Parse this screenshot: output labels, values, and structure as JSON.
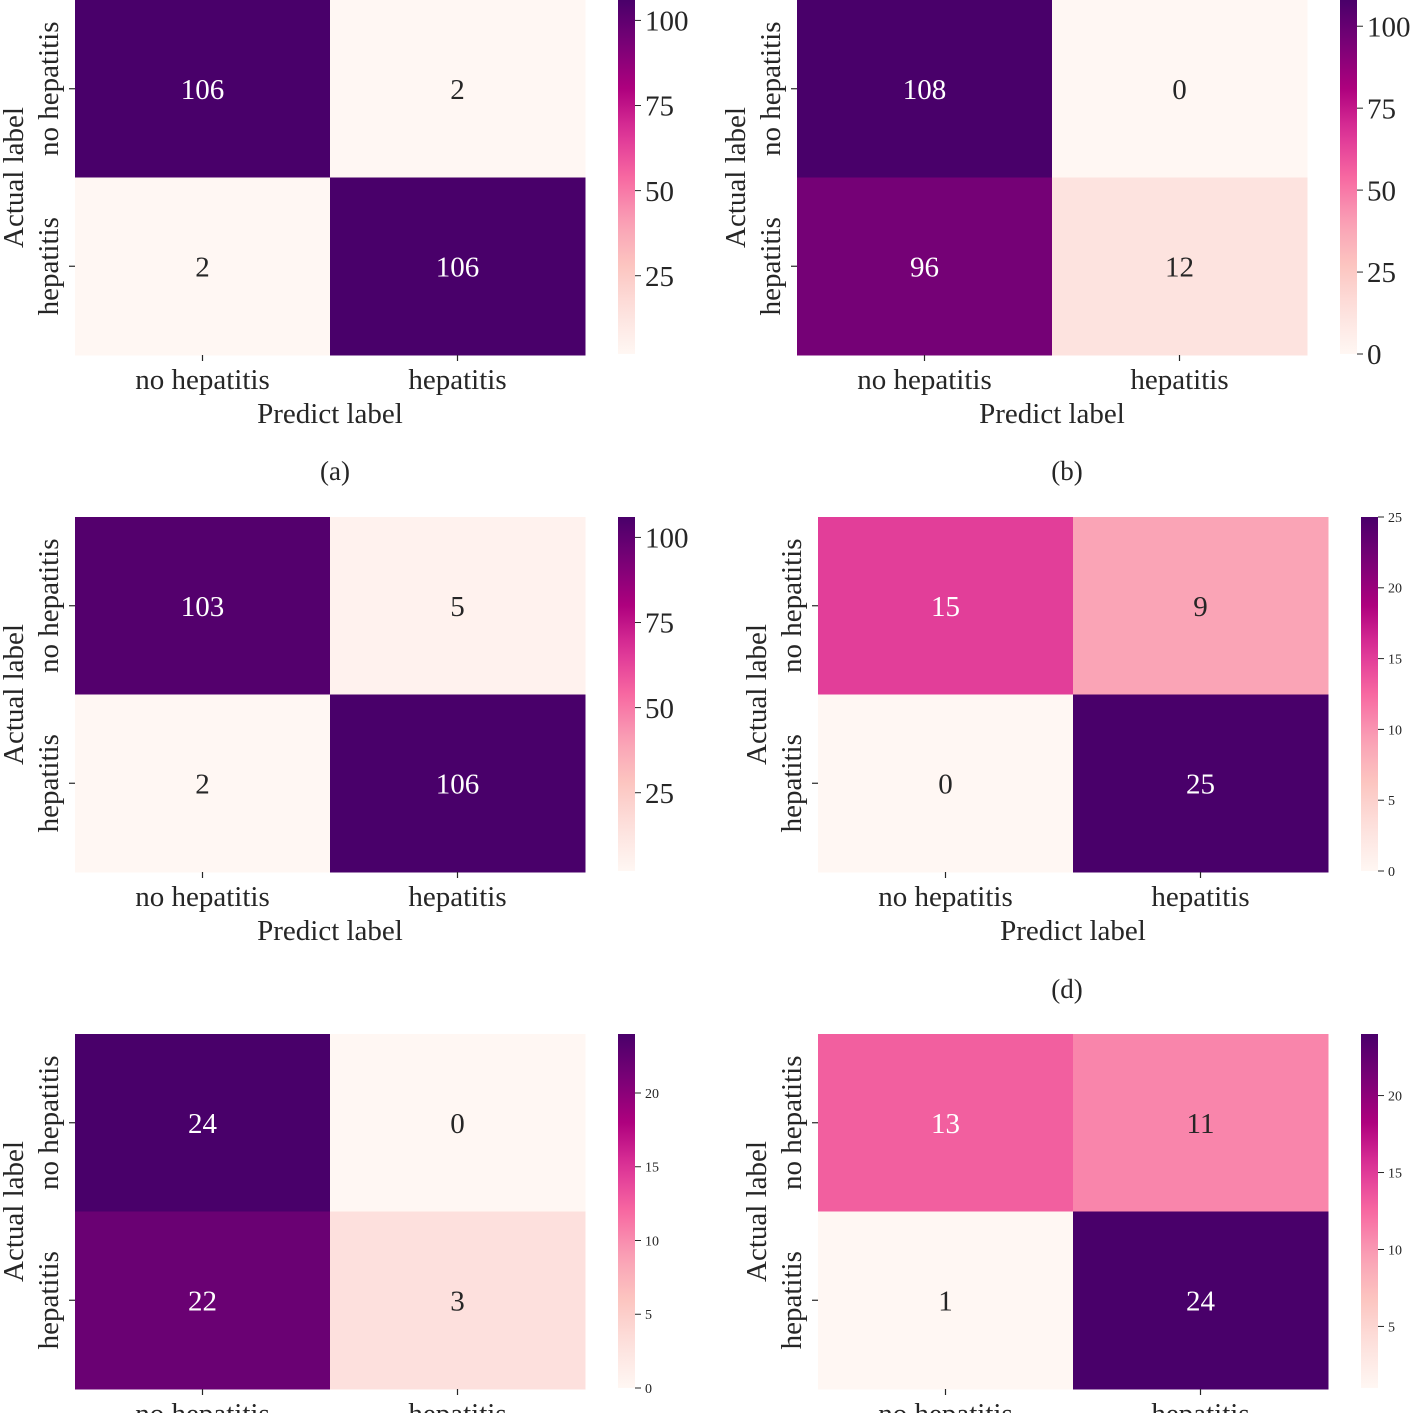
{
  "colors": {
    "cmap": [
      "#fff7f3",
      "#fde0dd",
      "#fcc5c0",
      "#fa9fb5",
      "#f768a1",
      "#dd3497",
      "#ae017e",
      "#7a0177",
      "#49006a"
    ],
    "text_on_dark": "#ffffff",
    "text_on_light": "#262626",
    "axis": "#262626"
  },
  "chart_data": [
    {
      "panel": "a",
      "type": "heatmap",
      "caption": "(a)",
      "categories_x": [
        "no hepatitis",
        "hepatitis"
      ],
      "categories_y": [
        "no hepatitis",
        "hepatitis"
      ],
      "matrix": [
        [
          106,
          2
        ],
        [
          2,
          106
        ]
      ],
      "annotations": [
        "106",
        "2",
        "2",
        "106"
      ],
      "xlabel": "Predict label",
      "ylabel": "Actual label",
      "vmin": 2,
      "vmax": 106,
      "colorbar_ticks": [
        25,
        50,
        75,
        100
      ],
      "colorbar_tick_labels": [
        "25",
        "50",
        "75",
        "100"
      ]
    },
    {
      "panel": "b",
      "type": "heatmap",
      "caption": "(b)",
      "categories_x": [
        "no hepatitis",
        "hepatitis"
      ],
      "categories_y": [
        "no hepatitis",
        "hepatitis"
      ],
      "matrix": [
        [
          108,
          0
        ],
        [
          96,
          12
        ]
      ],
      "annotations": [
        "108",
        "0",
        "96",
        "12"
      ],
      "xlabel": "Predict label",
      "ylabel": "Actual label",
      "vmin": 0,
      "vmax": 108,
      "colorbar_ticks": [
        0,
        25,
        50,
        75,
        100
      ],
      "colorbar_tick_labels": [
        "0",
        "25",
        "50",
        "75",
        "100"
      ]
    },
    {
      "panel": "c",
      "type": "heatmap",
      "caption": "",
      "categories_x": [
        "no hepatitis",
        "hepatitis"
      ],
      "categories_y": [
        "no hepatitis",
        "hepatitis"
      ],
      "matrix": [
        [
          103,
          5
        ],
        [
          2,
          106
        ]
      ],
      "annotations": [
        "103",
        "5",
        "2",
        "106"
      ],
      "xlabel": "Predict label",
      "ylabel": "Actual label",
      "vmin": 2,
      "vmax": 106,
      "colorbar_ticks": [
        25,
        50,
        75,
        100
      ],
      "colorbar_tick_labels": [
        "25",
        "50",
        "75",
        "100"
      ]
    },
    {
      "panel": "d",
      "type": "heatmap",
      "caption": "(d)",
      "categories_x": [
        "no hepatitis",
        "hepatitis"
      ],
      "categories_y": [
        "no hepatitis",
        "hepatitis"
      ],
      "matrix": [
        [
          15,
          9
        ],
        [
          0,
          25
        ]
      ],
      "annotations": [
        "15",
        "9",
        "0",
        "25"
      ],
      "xlabel": "Predict label",
      "ylabel": "Actual label",
      "vmin": 0,
      "vmax": 25,
      "colorbar_ticks": [
        0,
        5,
        10,
        15,
        20,
        25
      ],
      "colorbar_tick_labels": [
        "0",
        "5",
        "10",
        "15",
        "20",
        "25"
      ]
    },
    {
      "panel": "e",
      "type": "heatmap",
      "caption": "",
      "categories_x": [
        "no hepatitis",
        "hepatitis"
      ],
      "categories_y": [
        "no hepatitis",
        "hepatitis"
      ],
      "matrix": [
        [
          24,
          0
        ],
        [
          22,
          3
        ]
      ],
      "annotations": [
        "24",
        "0",
        "22",
        "3"
      ],
      "xlabel": "",
      "ylabel": "Actual label",
      "vmin": 0,
      "vmax": 24,
      "colorbar_ticks": [
        0,
        5,
        10,
        15,
        20
      ],
      "colorbar_tick_labels": [
        "0",
        "5",
        "10",
        "15",
        "20"
      ]
    },
    {
      "panel": "f",
      "type": "heatmap",
      "caption": "",
      "categories_x": [
        "no hepatitis",
        "hepatitis"
      ],
      "categories_y": [
        "no hepatitis",
        "hepatitis"
      ],
      "matrix": [
        [
          13,
          11
        ],
        [
          1,
          24
        ]
      ],
      "annotations": [
        "13",
        "11",
        "1",
        "24"
      ],
      "xlabel": "",
      "ylabel": "Actual label",
      "vmin": 1,
      "vmax": 24,
      "colorbar_ticks": [
        5,
        10,
        15,
        20
      ],
      "colorbar_tick_labels": [
        "5",
        "10",
        "15",
        "20"
      ]
    }
  ]
}
